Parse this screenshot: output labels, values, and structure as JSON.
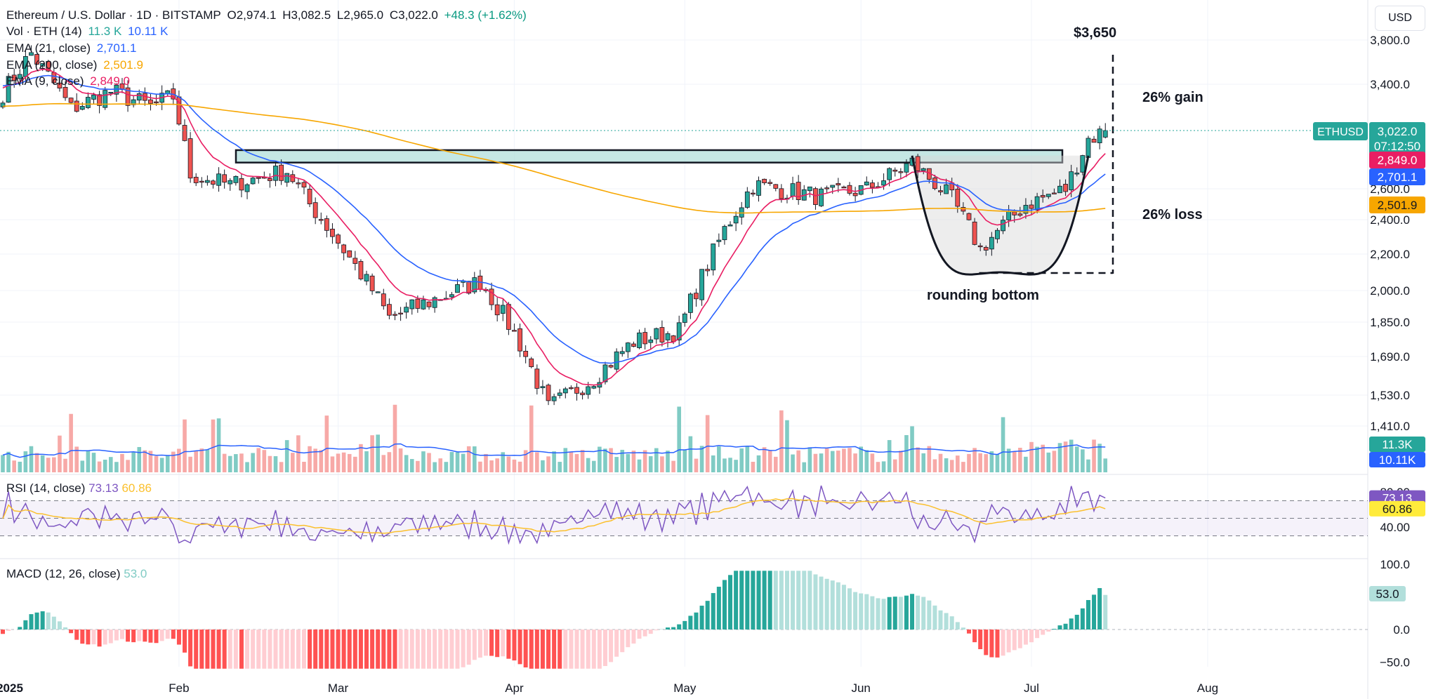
{
  "header": {
    "symbol": "Ethereum / U.S. Dollar · 1D · BITSTAMP",
    "ohlc": {
      "o": "O2,974.1",
      "h": "H3,082.5",
      "l": "L2,965.0",
      "c": "C3,022.0",
      "chg": "+48.3 (+1.62%)"
    },
    "vol": {
      "label": "Vol · ETH (14)",
      "v1": "11.3 K",
      "v2": "10.11 K"
    },
    "ema21": {
      "label": "EMA (21, close)",
      "value": "2,701.1"
    },
    "ema200": {
      "label": "EMA (200, close)",
      "value": "2,501.9"
    },
    "ema9": {
      "label": "EMA (9, close)",
      "value": "2,849.0"
    },
    "currency": "USD"
  },
  "colors": {
    "up": "#26a69a",
    "down": "#ef5350",
    "ema21": "#2962ff",
    "ema200": "#f7a600",
    "ema9": "#e91e63",
    "rsi": "#7e57c2",
    "rsi_ma": "#fbc02d",
    "vol_ma": "#2962ff",
    "resistance": "#b2dfdb"
  },
  "price_axis": {
    "ticks": [
      "3,800.0",
      "3,400.0",
      "2,600.0",
      "2,400.0",
      "2,200.0",
      "2,000.0",
      "1,850.0",
      "1,690.0",
      "1,530.0",
      "1,410.0"
    ],
    "last_label": "ETHUSD",
    "last_price": "3,022.0",
    "countdown": "07:12:50",
    "ema9_label": "2,849.0",
    "ema21_label": "2,701.1",
    "ema200_label": "2,501.9",
    "vol_labels": [
      "11.3K",
      "10.11K"
    ]
  },
  "time_axis": [
    "2025",
    "Feb",
    "Mar",
    "Apr",
    "May",
    "Jun",
    "Jul",
    "Aug"
  ],
  "annotations": {
    "target": "$3,650",
    "gain": "26% gain",
    "loss": "26% loss",
    "pattern": "rounding bottom"
  },
  "rsi": {
    "label": "RSI (14, close)",
    "value": "73.13",
    "ma": "60.86",
    "ticks": [
      "80.00",
      "40.00"
    ]
  },
  "macd": {
    "label": "MACD (12, 26, close)",
    "value": "53.0",
    "ticks": [
      "100.0",
      "0.0",
      "−50.0"
    ]
  },
  "chart_data": {
    "type": "candlestick",
    "title": "Ethereum / U.S. Dollar · 1D · BITSTAMP",
    "x_range": [
      "2025-01-01",
      "2025-07-14"
    ],
    "resistance_zone": [
      2790,
      2880
    ],
    "target_price": 3650,
    "keyframes_close": [
      [
        "2025-01-01",
        3330
      ],
      [
        "2025-01-06",
        3680
      ],
      [
        "2025-01-13",
        3200
      ],
      [
        "2025-01-20",
        3340
      ],
      [
        "2025-01-27",
        3220
      ],
      [
        "2025-01-31",
        3300
      ],
      [
        "2025-02-03",
        2700
      ],
      [
        "2025-02-10",
        2630
      ],
      [
        "2025-02-20",
        2730
      ],
      [
        "2025-02-24",
        2500
      ],
      [
        "2025-03-03",
        2180
      ],
      [
        "2025-03-10",
        1870
      ],
      [
        "2025-03-20",
        1980
      ],
      [
        "2025-03-26",
        2050
      ],
      [
        "2025-04-01",
        1800
      ],
      [
        "2025-04-07",
        1480
      ],
      [
        "2025-04-15",
        1600
      ],
      [
        "2025-04-22",
        1760
      ],
      [
        "2025-04-30",
        1810
      ],
      [
        "2025-05-08",
        2340
      ],
      [
        "2025-05-13",
        2630
      ],
      [
        "2025-05-25",
        2550
      ],
      [
        "2025-06-02",
        2600
      ],
      [
        "2025-06-10",
        2790
      ],
      [
        "2025-06-17",
        2530
      ],
      [
        "2025-06-22",
        2230
      ],
      [
        "2025-06-30",
        2500
      ],
      [
        "2025-07-07",
        2600
      ],
      [
        "2025-07-11",
        2960
      ],
      [
        "2025-07-14",
        3022
      ]
    ],
    "ema_9_last": 2849.0,
    "ema_21_last": 2701.1,
    "ema_200_last": 2501.9,
    "volume_last": 11300,
    "volume_ma_last": 10110,
    "rsi_last": 73.13,
    "rsi_ma_last": 60.86,
    "rsi_levels": [
      30,
      50,
      70
    ],
    "macd_hist_last": 53.0
  }
}
